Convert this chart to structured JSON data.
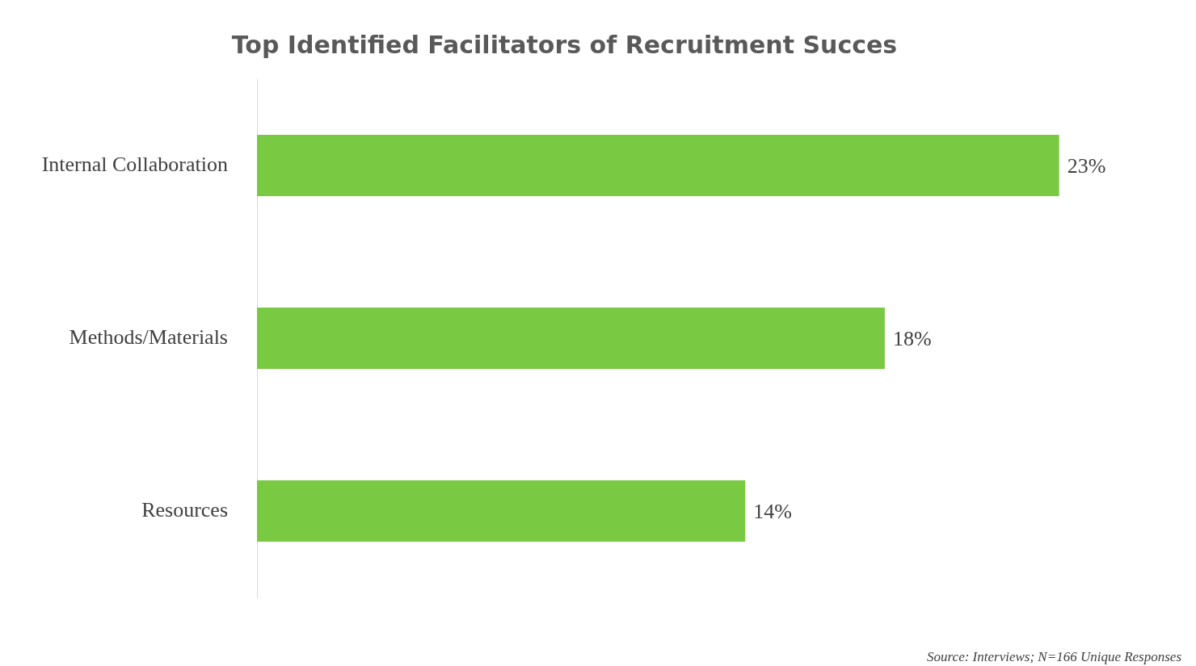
{
  "chart_data": {
    "type": "bar",
    "orientation": "horizontal",
    "title": "Top Identified Facilitators of Recruitment Succes",
    "categories": [
      "Internal Collaboration",
      "Methods/Materials",
      "Resources"
    ],
    "values": [
      23,
      18,
      14
    ],
    "value_labels": [
      "23%",
      "18%",
      "14%"
    ],
    "color": "#7ac943",
    "legend": false,
    "annotations": [
      "Source: Interviews; N=166 Unique Responses"
    ]
  }
}
